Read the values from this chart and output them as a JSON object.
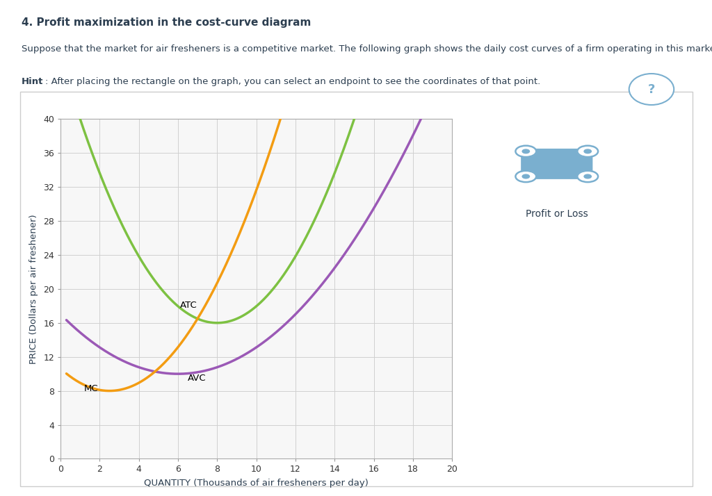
{
  "title_main": "4. Profit maximization in the cost-curve diagram",
  "subtitle": "Suppose that the market for air fresheners is a competitive market. The following graph shows the daily cost curves of a firm operating in this market.",
  "hint_bold": "Hint",
  "hint_rest": ": After placing the rectangle on the graph, you can select an endpoint to see the coordinates of that point.",
  "xlabel": "QUANTITY (Thousands of air fresheners per day)",
  "ylabel": "PRICE (Dollars per air freshener)",
  "xlim": [
    0,
    20
  ],
  "ylim": [
    0,
    40
  ],
  "xticks": [
    0,
    2,
    4,
    6,
    8,
    10,
    12,
    14,
    16,
    18,
    20
  ],
  "yticks": [
    0,
    4,
    8,
    12,
    16,
    20,
    24,
    28,
    32,
    36,
    40
  ],
  "atc_color": "#7dc142",
  "avc_color": "#9b59b6",
  "mc_color": "#f39c12",
  "plot_bg_color": "#f7f7f7",
  "box_bg_color": "#ffffff",
  "grid_color": "#d0d0d0",
  "legend_label": "Profit or Loss",
  "legend_icon_color": "#7aafcf",
  "text_color": "#2c3e50"
}
